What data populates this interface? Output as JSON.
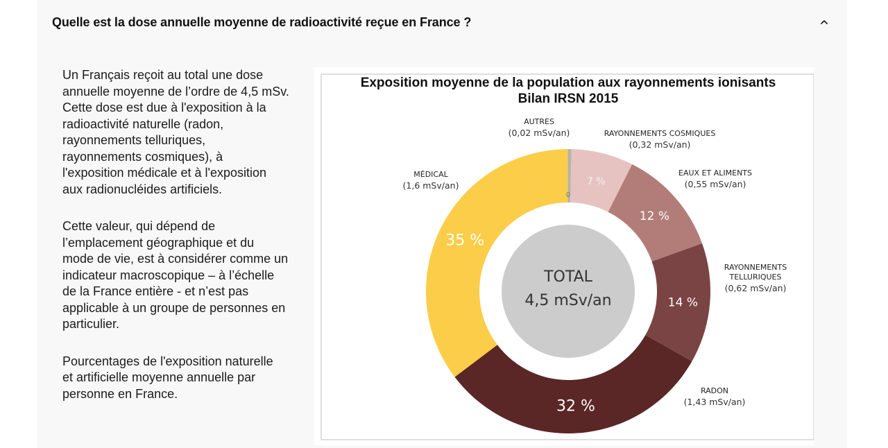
{
  "faq": {
    "question": "Quelle est la dose annuelle moyenne de radioactivité reçue en France ?",
    "expanded": true,
    "toggle_icon": "chevron-up-icon"
  },
  "answer": {
    "paragraphs": [
      [
        "Un Français reçoit au total une dose",
        "annuelle moyenne de l’ordre de 4,5 mSv.",
        "Cette dose est due à l'exposition à la",
        "radioactivité naturelle (radon,",
        "rayonnements telluriques,",
        "rayonnements cosmiques), à",
        "l'exposition médicale et à l'exposition",
        "aux radionucléides artificiels."
      ],
      [
        "Cette valeur, qui dépend de",
        "l’emplacement géographique et du",
        "mode de vie, est à considérer comme un",
        "indicateur macroscopique – à l’échelle",
        "de la France entière - et n’est pas",
        "applicable à un groupe de personnes en",
        "particulier."
      ],
      [
        "Pourcentages de l'exposition naturelle",
        "et artificielle moyenne annuelle par",
        "personne en France."
      ]
    ]
  },
  "chart_data": {
    "type": "pie",
    "variant": "donut",
    "title": "Exposition moyenne de la population aux rayonnements ionisants",
    "subtitle": "Bilan IRSN 2015",
    "center_label": "TOTAL",
    "center_value": "4,5 mSv/an",
    "zero_label": "0",
    "categories": [
      "AUTRES",
      "RAYONNEMENTS COSMIQUES",
      "EAUX ET ALIMENTS",
      "RAYONNEMENTS TELLURIQUES",
      "RADON",
      "MÉDICAL"
    ],
    "values": [
      0.02,
      0.32,
      0.55,
      0.62,
      1.43,
      1.6
    ],
    "unit": "mSv/an",
    "percent_labels": [
      "",
      "7 %",
      "12 %",
      "14 %",
      "32 %",
      "35 %"
    ],
    "slices": [
      {
        "name": "AUTRES",
        "name_lines": [
          "AUTRES"
        ],
        "value": 0.02,
        "value_label": "(0,02 mSv/an)",
        "percent_label": "",
        "color": "#b8b4a4"
      },
      {
        "name": "RAYONNEMENTS COSMIQUES",
        "name_lines": [
          "RAYONNEMENTS COSMIQUES"
        ],
        "value": 0.32,
        "value_label": "(0,32 mSv/an)",
        "percent_label": "7 %",
        "color": "#e6c3c1"
      },
      {
        "name": "EAUX ET ALIMENTS",
        "name_lines": [
          "EAUX ET ALIMENTS"
        ],
        "value": 0.55,
        "value_label": "(0,55 mSv/an)",
        "percent_label": "12 %",
        "color": "#b27d79"
      },
      {
        "name": "RAYONNEMENTS TELLURIQUES",
        "name_lines": [
          "RAYONNEMENTS",
          "TELLURIQUES"
        ],
        "value": 0.62,
        "value_label": "(0,62 mSv/an)",
        "percent_label": "14 %",
        "color": "#7a4444"
      },
      {
        "name": "RADON",
        "name_lines": [
          "RADON"
        ],
        "value": 1.43,
        "value_label": "(1,43 mSv/an)",
        "percent_label": "32 %",
        "color": "#5a2626"
      },
      {
        "name": "MÉDICAL",
        "name_lines": [
          "MÉDICAL"
        ],
        "value": 1.6,
        "value_label": "(1,6 mSv/an)",
        "percent_label": "35 %",
        "color": "#fccd48"
      }
    ]
  }
}
